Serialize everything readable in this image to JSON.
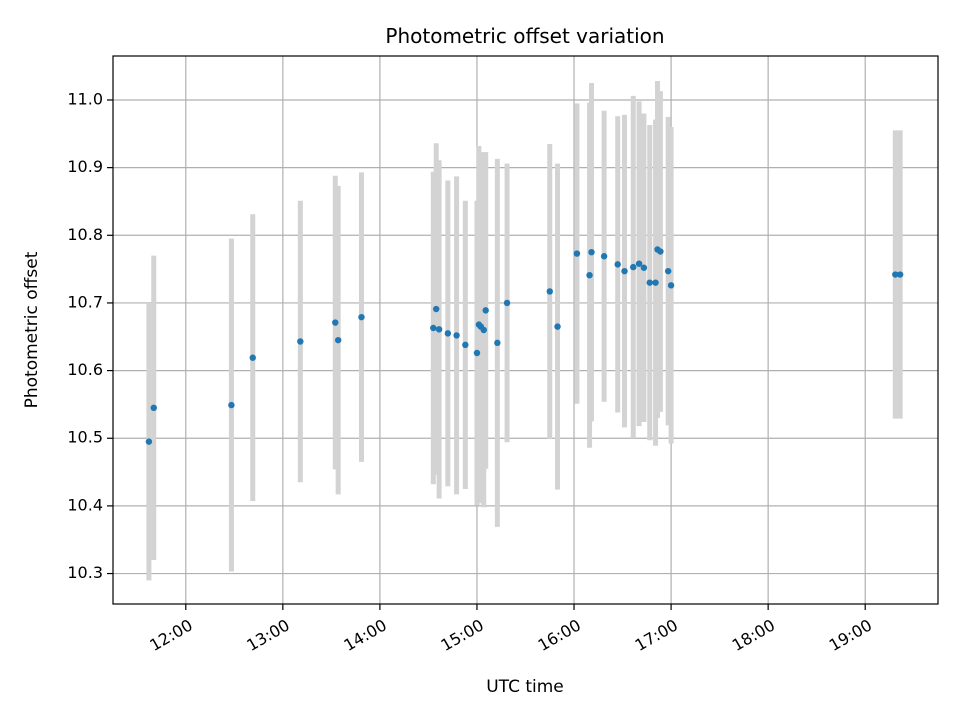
{
  "chart_data": {
    "type": "scatter",
    "title": "Photometric offset variation",
    "xlabel": "UTC time",
    "ylabel": "Photometric offset",
    "x_unit": "hours UTC",
    "xlim": [
      11.25,
      19.75
    ],
    "ylim": [
      10.255,
      11.065
    ],
    "grid": true,
    "point_color": "#1f77b4",
    "errorbar_color": "#d3d3d3",
    "x_ticks": [
      {
        "value": 12,
        "label": "12:00"
      },
      {
        "value": 13,
        "label": "13:00"
      },
      {
        "value": 14,
        "label": "14:00"
      },
      {
        "value": 15,
        "label": "15:00"
      },
      {
        "value": 16,
        "label": "16:00"
      },
      {
        "value": 17,
        "label": "17:00"
      },
      {
        "value": 18,
        "label": "18:00"
      },
      {
        "value": 19,
        "label": "19:00"
      }
    ],
    "y_ticks": [
      {
        "value": 10.3,
        "label": "10.3"
      },
      {
        "value": 10.4,
        "label": "10.4"
      },
      {
        "value": 10.5,
        "label": "10.5"
      },
      {
        "value": 10.6,
        "label": "10.6"
      },
      {
        "value": 10.7,
        "label": "10.7"
      },
      {
        "value": 10.8,
        "label": "10.8"
      },
      {
        "value": 10.9,
        "label": "10.9"
      },
      {
        "value": 11.0,
        "label": "11.0"
      }
    ],
    "points": [
      {
        "x": 11.62,
        "y": 10.495,
        "err": 0.205
      },
      {
        "x": 11.67,
        "y": 10.545,
        "err": 0.225
      },
      {
        "x": 12.47,
        "y": 10.549,
        "err": 0.246
      },
      {
        "x": 12.69,
        "y": 10.619,
        "err": 0.212
      },
      {
        "x": 13.18,
        "y": 10.643,
        "err": 0.208
      },
      {
        "x": 13.54,
        "y": 10.671,
        "err": 0.217
      },
      {
        "x": 13.57,
        "y": 10.645,
        "err": 0.228
      },
      {
        "x": 13.81,
        "y": 10.679,
        "err": 0.214
      },
      {
        "x": 14.55,
        "y": 10.663,
        "err": 0.231
      },
      {
        "x": 14.58,
        "y": 10.691,
        "err": 0.245
      },
      {
        "x": 14.61,
        "y": 10.661,
        "err": 0.25
      },
      {
        "x": 14.7,
        "y": 10.655,
        "err": 0.226
      },
      {
        "x": 14.79,
        "y": 10.652,
        "err": 0.235
      },
      {
        "x": 14.88,
        "y": 10.638,
        "err": 0.213
      },
      {
        "x": 15.0,
        "y": 10.626,
        "err": 0.225
      },
      {
        "x": 15.02,
        "y": 10.668,
        "err": 0.264
      },
      {
        "x": 15.04,
        "y": 10.665,
        "err": 0.258
      },
      {
        "x": 15.07,
        "y": 10.66,
        "err": 0.262
      },
      {
        "x": 15.09,
        "y": 10.689,
        "err": 0.234
      },
      {
        "x": 15.21,
        "y": 10.641,
        "err": 0.272
      },
      {
        "x": 15.31,
        "y": 10.7,
        "err": 0.206
      },
      {
        "x": 15.75,
        "y": 10.717,
        "err": 0.218
      },
      {
        "x": 15.83,
        "y": 10.665,
        "err": 0.241
      },
      {
        "x": 16.03,
        "y": 10.773,
        "err": 0.222
      },
      {
        "x": 16.16,
        "y": 10.741,
        "err": 0.255
      },
      {
        "x": 16.18,
        "y": 10.775,
        "err": 0.25
      },
      {
        "x": 16.31,
        "y": 10.769,
        "err": 0.215
      },
      {
        "x": 16.45,
        "y": 10.757,
        "err": 0.219
      },
      {
        "x": 16.52,
        "y": 10.747,
        "err": 0.231
      },
      {
        "x": 16.61,
        "y": 10.753,
        "err": 0.253
      },
      {
        "x": 16.67,
        "y": 10.758,
        "err": 0.24
      },
      {
        "x": 16.72,
        "y": 10.752,
        "err": 0.228
      },
      {
        "x": 16.78,
        "y": 10.73,
        "err": 0.233
      },
      {
        "x": 16.84,
        "y": 10.73,
        "err": 0.241
      },
      {
        "x": 16.86,
        "y": 10.779,
        "err": 0.249
      },
      {
        "x": 16.89,
        "y": 10.776,
        "err": 0.237
      },
      {
        "x": 16.97,
        "y": 10.747,
        "err": 0.228
      },
      {
        "x": 17.0,
        "y": 10.726,
        "err": 0.234
      },
      {
        "x": 19.31,
        "y": 10.742,
        "err": 0.213
      },
      {
        "x": 19.36,
        "y": 10.742,
        "err": 0.213
      }
    ]
  }
}
